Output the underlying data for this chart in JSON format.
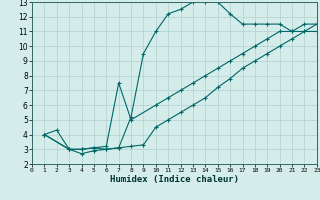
{
  "title": "",
  "xlabel": "Humidex (Indice chaleur)",
  "bg_color": "#d4edea",
  "grid_color": "#b0cfcc",
  "line_color": "#006666",
  "xlim": [
    0,
    23
  ],
  "ylim": [
    2,
    13
  ],
  "xticks": [
    0,
    1,
    2,
    3,
    4,
    5,
    6,
    7,
    8,
    9,
    10,
    11,
    12,
    13,
    14,
    15,
    16,
    17,
    18,
    19,
    20,
    21,
    22,
    23
  ],
  "yticks": [
    2,
    3,
    4,
    5,
    6,
    7,
    8,
    9,
    10,
    11,
    12,
    13
  ],
  "line1_x": [
    1,
    2,
    3,
    4,
    5,
    6,
    7,
    8,
    9,
    10,
    11,
    12,
    13,
    14,
    15,
    16,
    17,
    18,
    19,
    20,
    21,
    22,
    23
  ],
  "line1_y": [
    4,
    4.3,
    3.0,
    3.0,
    3.1,
    3.0,
    3.1,
    5.2,
    9.5,
    11.0,
    12.2,
    12.5,
    13.0,
    13.0,
    13.0,
    12.2,
    11.5,
    11.5,
    11.5,
    11.5,
    11.0,
    11.0,
    11.0
  ],
  "line2_x": [
    1,
    3,
    4,
    5,
    6,
    7,
    8,
    10,
    11,
    12,
    13,
    14,
    15,
    16,
    17,
    18,
    19,
    20,
    21,
    22,
    23
  ],
  "line2_y": [
    4,
    3.0,
    3.0,
    3.1,
    3.2,
    7.5,
    5.0,
    6.0,
    6.5,
    7.0,
    7.5,
    8.0,
    8.5,
    9.0,
    9.5,
    10.0,
    10.5,
    11.0,
    11.0,
    11.5,
    11.5
  ],
  "line3_x": [
    1,
    3,
    4,
    5,
    6,
    7,
    8,
    9,
    10,
    11,
    12,
    13,
    14,
    15,
    16,
    17,
    18,
    19,
    20,
    21,
    22,
    23
  ],
  "line3_y": [
    4,
    3.0,
    2.7,
    2.9,
    3.0,
    3.1,
    3.2,
    3.3,
    4.5,
    5.0,
    5.5,
    6.0,
    6.5,
    7.2,
    7.8,
    8.5,
    9.0,
    9.5,
    10.0,
    10.5,
    11.0,
    11.5
  ]
}
